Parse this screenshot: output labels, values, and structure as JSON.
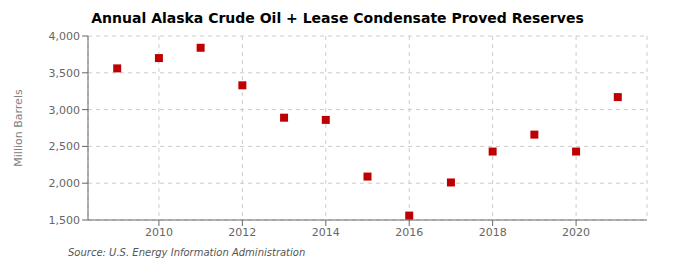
{
  "chart_data": {
    "type": "scatter",
    "title": "Annual Alaska Crude Oil + Lease Condensate Proved Reserves",
    "ylabel": "Million Barrels",
    "annotations": [
      "Source: U.S. Energy Information Administration"
    ],
    "x": [
      2009,
      2010,
      2011,
      2012,
      2013,
      2014,
      2015,
      2016,
      2017,
      2018,
      2019,
      2020,
      2021
    ],
    "values": [
      3560,
      3700,
      3840,
      3330,
      2890,
      2860,
      2090,
      1560,
      2010,
      2430,
      2660,
      2430,
      3170
    ],
    "color": "#c00000",
    "marker": "square",
    "xlim": [
      2008.3,
      2021.7
    ],
    "xticks": [
      2010,
      2012,
      2014,
      2016,
      2018,
      2020
    ],
    "ylim": [
      1500,
      4000
    ],
    "yticks": [
      {
        "value": 1500,
        "label": "1,500"
      },
      {
        "value": 2000,
        "label": "2,000"
      },
      {
        "value": 2500,
        "label": "2,500"
      },
      {
        "value": 3000,
        "label": "3,000"
      },
      {
        "value": 3500,
        "label": "3,500"
      },
      {
        "value": 4000,
        "label": "4,000"
      }
    ],
    "grid": true
  }
}
